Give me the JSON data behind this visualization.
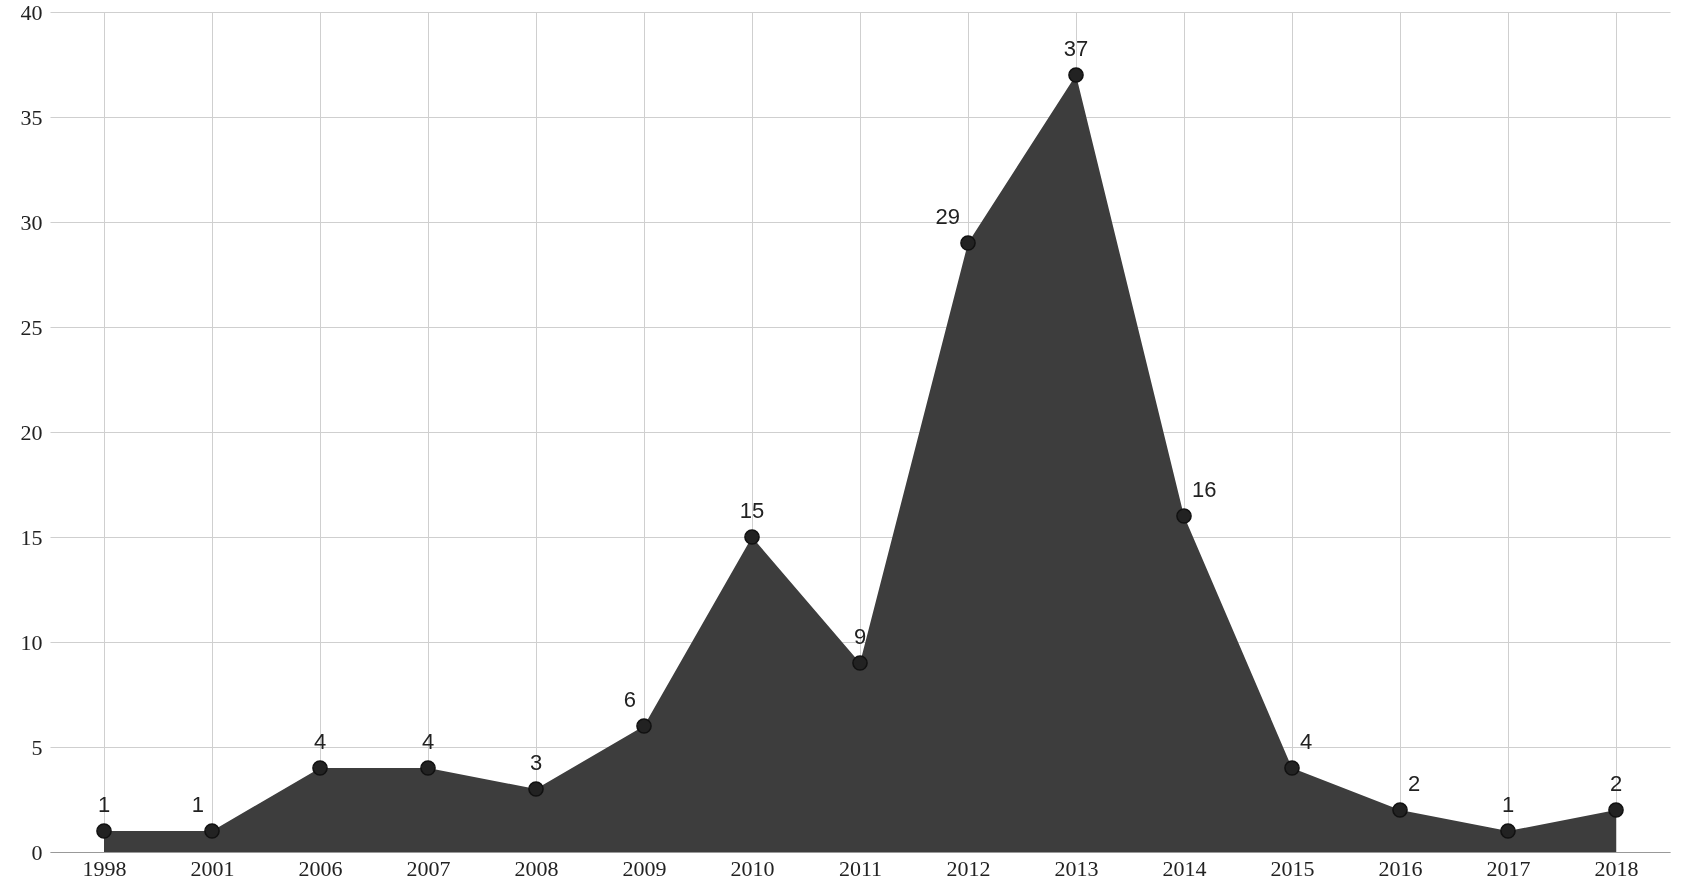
{
  "chart_data": {
    "type": "area",
    "categories": [
      "1998",
      "2001",
      "2006",
      "2007",
      "2008",
      "2009",
      "2010",
      "2011",
      "2012",
      "2013",
      "2014",
      "2015",
      "2016",
      "2017",
      "2018"
    ],
    "series": [
      {
        "color": "#3d3d3d",
        "values": [
          1,
          1,
          4,
          4,
          3,
          6,
          15,
          9,
          29,
          37,
          16,
          4,
          2,
          1,
          2
        ]
      }
    ],
    "ylim": [
      0,
      40
    ],
    "yticks": [
      0,
      5,
      10,
      15,
      20,
      25,
      30,
      35,
      40
    ],
    "grid": true,
    "marker": "circle",
    "data_labels": true
  }
}
